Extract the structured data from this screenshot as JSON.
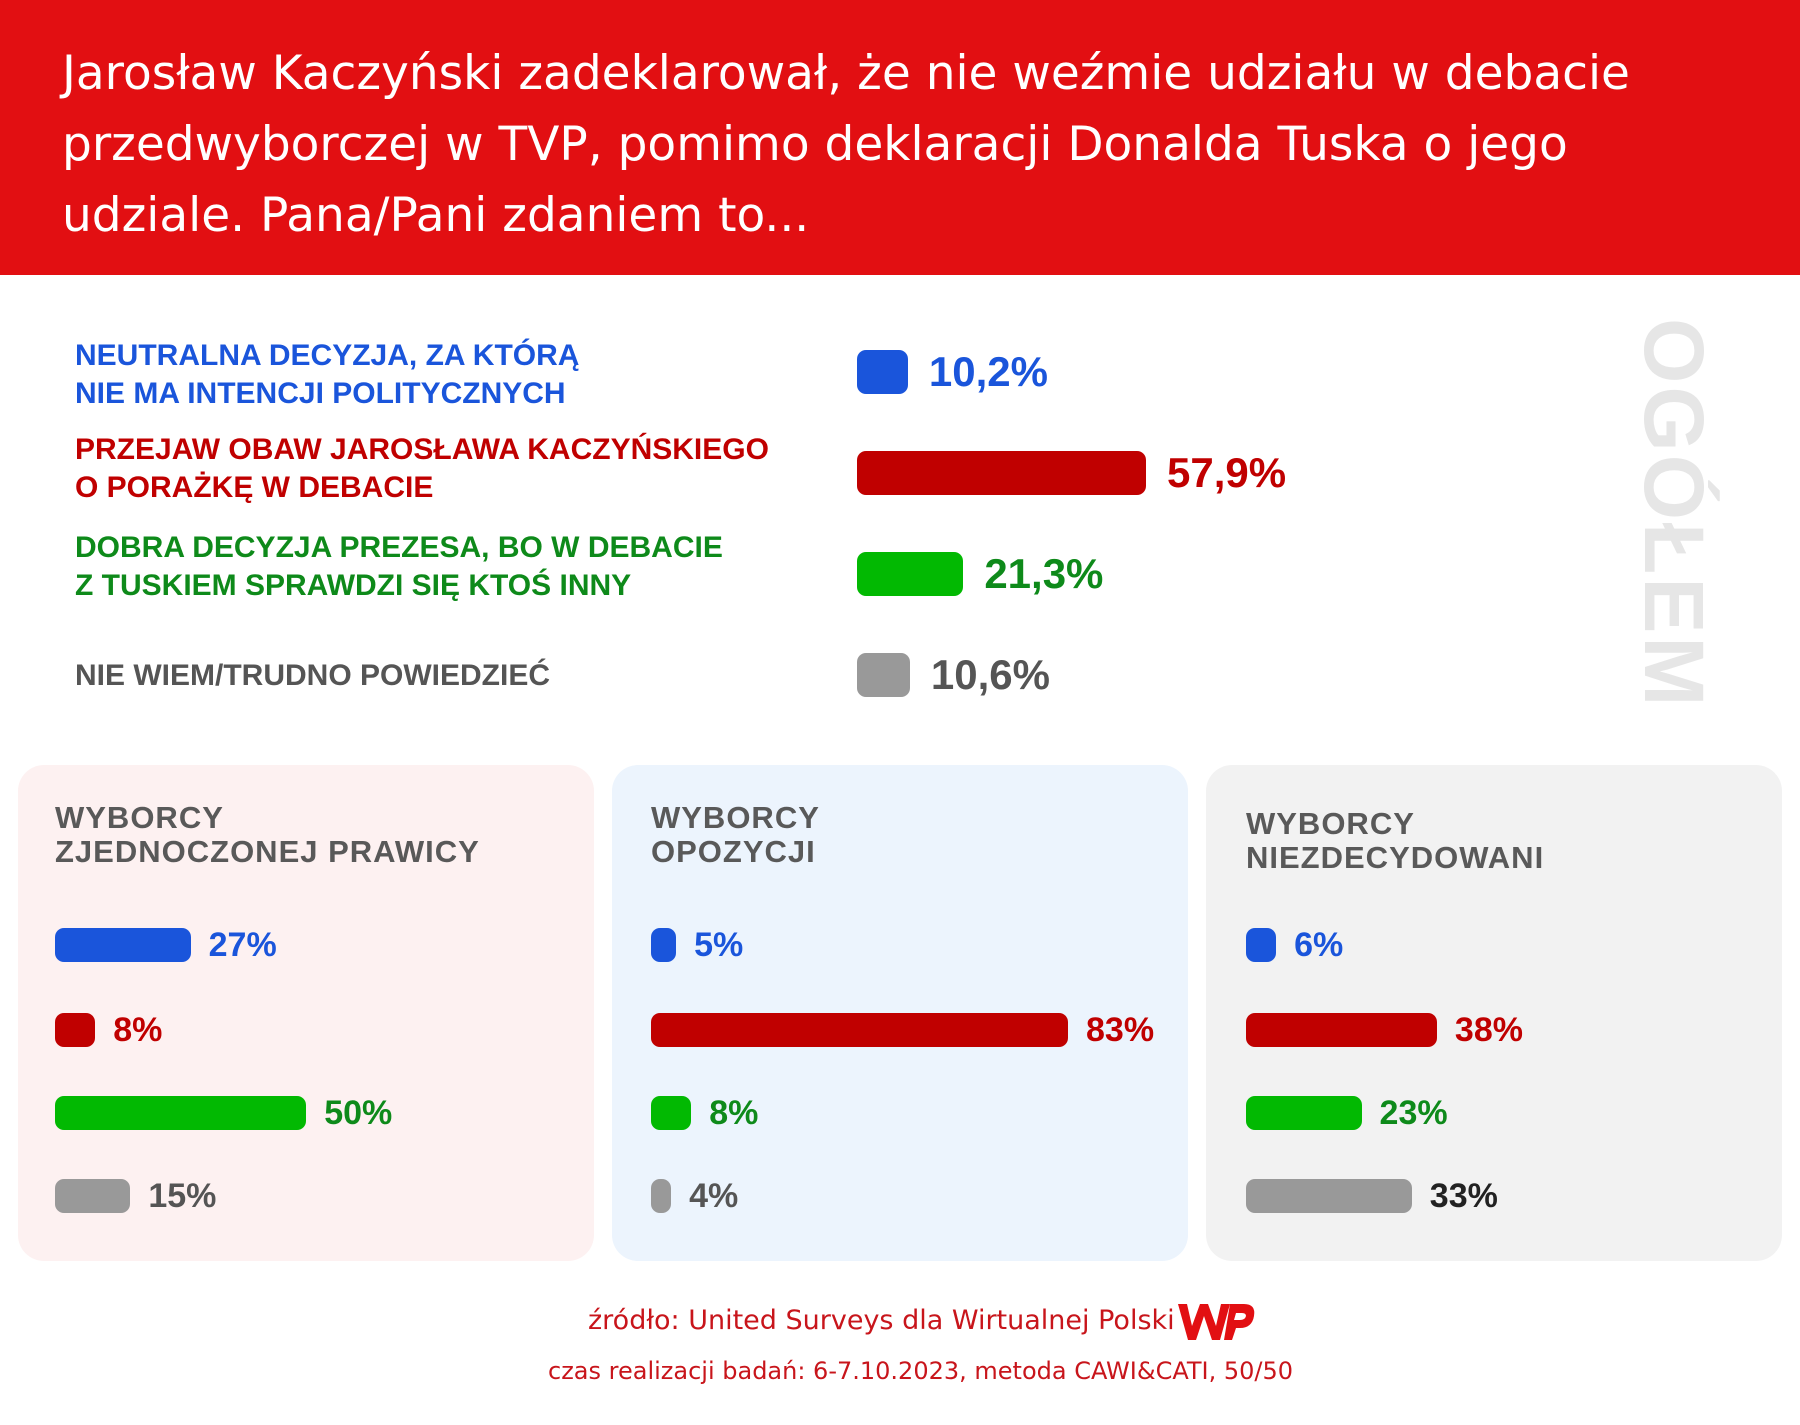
{
  "header": {
    "title": "Jarosław Kaczyński zadeklarował, że nie weźmie udziału w debacie przedwyborczej w TVP, pomimo deklaracji Donalda Tuska o jego udziale. Pana/Pani zdaniem to..."
  },
  "colors": {
    "header_bg": "#e20f12",
    "blue": "#1a55db",
    "red": "#c00000",
    "green": "#02b902",
    "green_text": "#0e8a1a",
    "gray": "#999999",
    "gray_text": "#555555",
    "panel_right_bg": "#fdf1f1",
    "panel_opp_bg": "#ecf4fd",
    "panel_und_bg": "#f2f2f2"
  },
  "overall": {
    "section_label": "OGÓŁEM"
  },
  "footer": {
    "source": "źródło: United Surveys dla Wirtualnej Polski",
    "time": "czas realizacji badań: 6-7.10.2023, metoda CAWI&CATI, 50/50"
  },
  "chart_data": [
    {
      "type": "bar",
      "title": "OGÓŁEM",
      "categories": [
        "NEUTRALNA DECYZJA, ZA KTÓRĄ NIE MA INTENCJI POLITYCZNYCH",
        "PRZEJAW OBAW JAROSŁAWA KACZYŃSKIEGO O PORAŻKĘ W DEBACIE",
        "DOBRA DECYZJA PREZESA, BO W DEBACIE Z TUSKIEM SPRAWDZI SIĘ KTOŚ INNY",
        "NIE WIEM/TRUDNO POWIEDZIEĆ"
      ],
      "category_lines": [
        [
          "NEUTRALNA DECYZJA, ZA KTÓRĄ",
          "NIE MA INTENCJI POLITYCZNYCH"
        ],
        [
          "PRZEJAW OBAW JAROSŁAWA KACZYŃSKIEGO",
          "O PORAŻKĘ W DEBACIE"
        ],
        [
          "DOBRA DECYZJA PREZESA, BO W DEBACIE",
          "Z TUSKIEM SPRAWDZI SIĘ KTOŚ INNY"
        ],
        [
          "NIE WIEM/TRUDNO POWIEDZIEĆ"
        ]
      ],
      "values": [
        10.2,
        57.9,
        21.3,
        10.6
      ],
      "value_labels": [
        "10,2%",
        "57,9%",
        "21,3%",
        "10,6%"
      ],
      "colors": [
        "#1a55db",
        "#c00000",
        "#02b902",
        "#999999"
      ],
      "label_colors": [
        "#1a55db",
        "#c00000",
        "#0e8a1a",
        "#555555"
      ]
    },
    {
      "type": "bar",
      "title": "WYBORCY ZJEDNOCZONEJ PRAWICY",
      "title_lines": [
        "WYBORCY",
        "ZJEDNOCZONEJ PRAWICY"
      ],
      "values": [
        27,
        8,
        50,
        15
      ],
      "value_labels": [
        "27%",
        "8%",
        "50%",
        "15%"
      ]
    },
    {
      "type": "bar",
      "title": "WYBORCY OPOZYCJI",
      "title_lines": [
        "WYBORCY",
        "OPOZYCJI"
      ],
      "values": [
        5,
        83,
        8,
        4
      ],
      "value_labels": [
        "5%",
        "83%",
        "8%",
        "4%"
      ]
    },
    {
      "type": "bar",
      "title": "WYBORCY NIEZDECYDOWANI",
      "title_lines": [
        "WYBORCY",
        "NIEZDECYDOWANI"
      ],
      "values": [
        6,
        38,
        23,
        33
      ],
      "value_labels": [
        "6%",
        "38%",
        "23%",
        "33%"
      ]
    }
  ]
}
